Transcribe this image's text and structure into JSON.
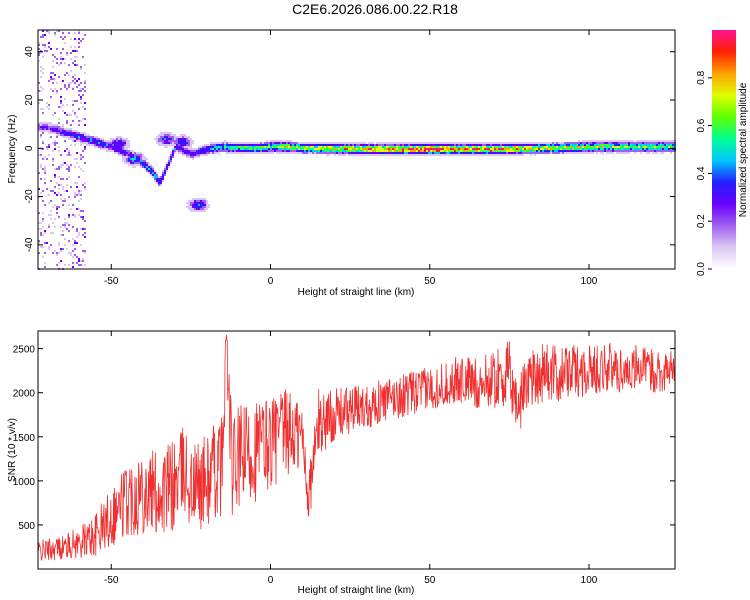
{
  "title": "C2E6.2026.086.00.22.R18",
  "chart_data": [
    {
      "type": "heatmap",
      "xlabel": "Height of straight line (km)",
      "ylabel": "Frequency (Hz)",
      "xlim": [
        -73,
        127
      ],
      "ylim": [
        -50,
        49
      ],
      "xticks": [
        -50,
        0,
        50,
        100
      ],
      "yticks": [
        -40,
        -20,
        0,
        20,
        40
      ],
      "colorbar": {
        "label": "Normalized spectral amplitude",
        "range": [
          0,
          1
        ],
        "ticks": [
          "0.0",
          "0.2",
          "0.4",
          "0.6",
          "0.8"
        ],
        "colormap": [
          "#ffffff",
          "#dcc8f4",
          "#a060f0",
          "#6a00ff",
          "#2020ff",
          "#00c8ff",
          "#00ff90",
          "#60ff00",
          "#e0ff00",
          "#ffa000",
          "#ff2000",
          "#ff1493"
        ]
      },
      "ridge": [
        {
          "x": -70,
          "f": 9,
          "a": 0.25
        },
        {
          "x": -65,
          "f": 7,
          "a": 0.3
        },
        {
          "x": -60,
          "f": 5,
          "a": 0.35
        },
        {
          "x": -55,
          "f": 3,
          "a": 0.4
        },
        {
          "x": -50,
          "f": 1,
          "a": 0.35
        },
        {
          "x": -45,
          "f": -2,
          "a": 0.3
        },
        {
          "x": -40,
          "f": -6,
          "a": 0.4
        },
        {
          "x": -37,
          "f": -10,
          "a": 0.45
        },
        {
          "x": -35,
          "f": -14,
          "a": 0.35
        },
        {
          "x": -30,
          "f": 1,
          "a": 0.35
        },
        {
          "x": -25,
          "f": -2,
          "a": 0.3
        },
        {
          "x": -20,
          "f": 0,
          "a": 0.4
        },
        {
          "x": -15,
          "f": 1,
          "a": 0.5
        },
        {
          "x": -10,
          "f": 0.5,
          "a": 0.55
        },
        {
          "x": -5,
          "f": 0.5,
          "a": 0.6
        },
        {
          "x": 0,
          "f": 1,
          "a": 0.6
        },
        {
          "x": 5,
          "f": 1,
          "a": 0.7
        },
        {
          "x": 10,
          "f": 0.5,
          "a": 0.65
        },
        {
          "x": 20,
          "f": 0.3,
          "a": 0.7
        },
        {
          "x": 30,
          "f": 0,
          "a": 0.8
        },
        {
          "x": 40,
          "f": 0,
          "a": 0.85
        },
        {
          "x": 50,
          "f": 0,
          "a": 0.95
        },
        {
          "x": 60,
          "f": 0,
          "a": 0.9
        },
        {
          "x": 70,
          "f": 0,
          "a": 0.85
        },
        {
          "x": 80,
          "f": 0.3,
          "a": 0.75
        },
        {
          "x": 90,
          "f": 0.5,
          "a": 0.7
        },
        {
          "x": 100,
          "f": 1,
          "a": 0.65
        },
        {
          "x": 110,
          "f": 1,
          "a": 0.6
        },
        {
          "x": 120,
          "f": 1,
          "a": 0.6
        },
        {
          "x": 127,
          "f": 1,
          "a": 0.55
        }
      ],
      "blobs": [
        {
          "x": -23,
          "f": -23,
          "a": 0.4
        },
        {
          "x": -43,
          "f": -4,
          "a": 0.45
        },
        {
          "x": -48,
          "f": 2,
          "a": 0.4
        },
        {
          "x": -33,
          "f": 4,
          "a": 0.35
        },
        {
          "x": -28,
          "f": 3,
          "a": 0.35
        }
      ],
      "noise_region": {
        "x_from": -73,
        "x_to": -58
      }
    },
    {
      "type": "line",
      "xlabel": "Height of straight line (km)",
      "ylabel": "SNR (10 * v/v)",
      "xlim": [
        -73,
        127
      ],
      "ylim": [
        0,
        2700
      ],
      "xticks": [
        -50,
        0,
        50,
        100
      ],
      "yticks": [
        500,
        1000,
        1500,
        2000,
        2500
      ],
      "color": "#f03030",
      "series": [
        {
          "name": "SNR",
          "x": [
            -73,
            -70,
            -65,
            -60,
            -55,
            -50,
            -45,
            -40,
            -35,
            -30,
            -27,
            -25,
            -20,
            -15,
            -14,
            -12,
            -10,
            -5,
            0,
            5,
            10,
            12,
            15,
            20,
            25,
            30,
            35,
            40,
            45,
            50,
            55,
            60,
            65,
            70,
            75,
            78,
            80,
            85,
            90,
            95,
            100,
            105,
            110,
            115,
            120,
            127
          ],
          "y": [
            200,
            220,
            250,
            300,
            380,
            600,
            800,
            900,
            850,
            950,
            1150,
            900,
            1000,
            1200,
            2650,
            1100,
            1250,
            1350,
            1450,
            1550,
            1500,
            800,
            1650,
            1750,
            1800,
            1850,
            1900,
            1950,
            2000,
            2050,
            2100,
            2150,
            2100,
            2150,
            2200,
            1800,
            2150,
            2250,
            2200,
            2250,
            2250,
            2300,
            2250,
            2300,
            2250,
            2250
          ],
          "spread": [
            120,
            130,
            140,
            180,
            250,
            350,
            450,
            500,
            500,
            550,
            500,
            500,
            550,
            600,
            300,
            600,
            600,
            600,
            550,
            500,
            450,
            300,
            400,
            300,
            280,
            260,
            250,
            250,
            250,
            250,
            260,
            280,
            300,
            320,
            400,
            350,
            350,
            380,
            320,
            300,
            300,
            280,
            280,
            260,
            250,
            250
          ]
        }
      ]
    }
  ]
}
